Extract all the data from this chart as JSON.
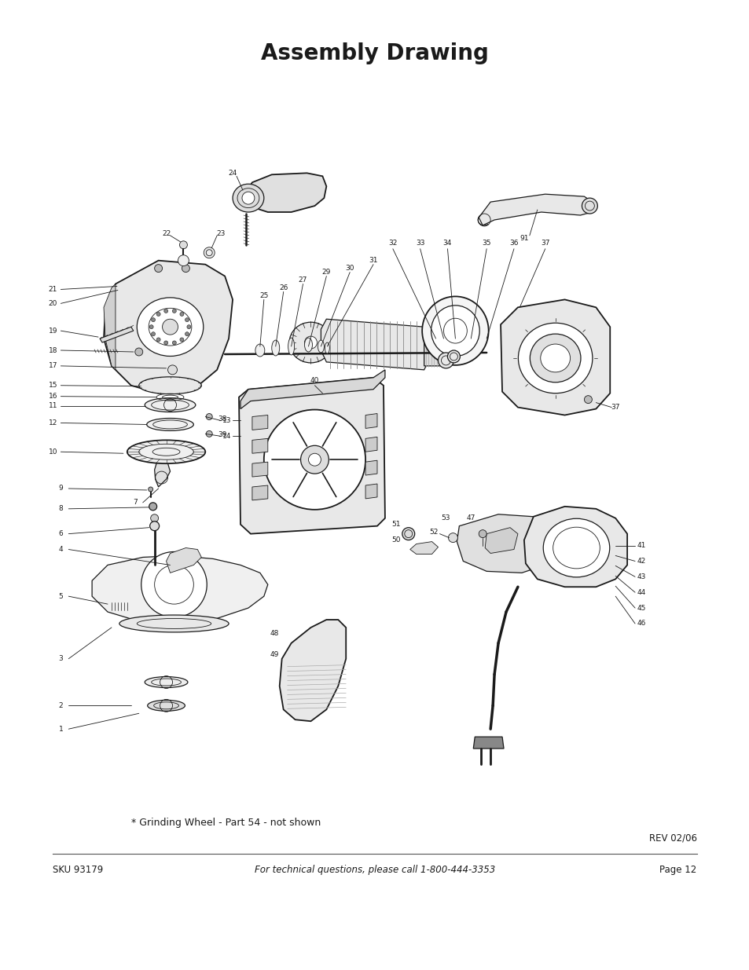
{
  "title": "Assembly Drawing",
  "title_fontsize": 20,
  "title_bold": true,
  "footer_sku": "SKU 93179",
  "footer_phone": "For technical questions, please call 1-800-444-3353",
  "footer_page": "Page 12",
  "footer_rev": "REV 02/06",
  "footer_note": "* Grinding Wheel - Part 54 - not shown",
  "bg_color": "#ffffff",
  "text_color": "#1a1a1a",
  "page_width": 9.54,
  "page_height": 12.35,
  "dpi": 100
}
